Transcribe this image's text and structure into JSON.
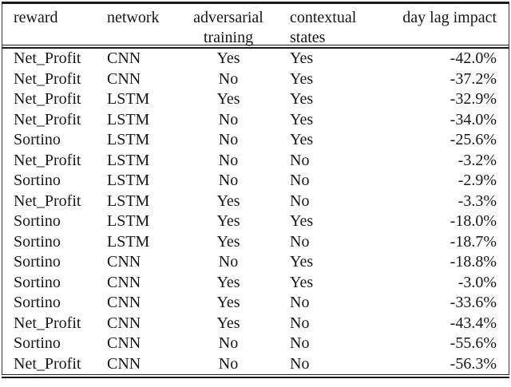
{
  "table": {
    "columns": [
      {
        "key": "reward",
        "label": "reward",
        "align": "left"
      },
      {
        "key": "network",
        "label": "network",
        "align": "left"
      },
      {
        "key": "adversarial_training",
        "label": "adversarial training",
        "align": "center"
      },
      {
        "key": "contextual_states",
        "label": "contextual states",
        "align": "left"
      },
      {
        "key": "day_lag_impact",
        "label": "day lag impact",
        "align": "right"
      }
    ],
    "rows": [
      [
        "Net_Profit",
        "CNN",
        "Yes",
        "Yes",
        "-42.0%"
      ],
      [
        "Net_Profit",
        "CNN",
        "No",
        "Yes",
        "-37.2%"
      ],
      [
        "Net_Profit",
        "LSTM",
        "Yes",
        "Yes",
        "-32.9%"
      ],
      [
        "Net_Profit",
        "LSTM",
        "No",
        "Yes",
        "-34.0%"
      ],
      [
        "Sortino",
        "LSTM",
        "No",
        "Yes",
        "-25.6%"
      ],
      [
        "Net_Profit",
        "LSTM",
        "No",
        "No",
        "-3.2%"
      ],
      [
        "Sortino",
        "LSTM",
        "No",
        "No",
        "-2.9%"
      ],
      [
        "Net_Profit",
        "LSTM",
        "Yes",
        "No",
        "-3.3%"
      ],
      [
        "Sortino",
        "LSTM",
        "Yes",
        "Yes",
        "-18.0%"
      ],
      [
        "Sortino",
        "LSTM",
        "Yes",
        "No",
        "-18.7%"
      ],
      [
        "Sortino",
        "CNN",
        "No",
        "Yes",
        "-18.8%"
      ],
      [
        "Sortino",
        "CNN",
        "Yes",
        "Yes",
        "-3.0%"
      ],
      [
        "Sortino",
        "CNN",
        "Yes",
        "No",
        "-33.6%"
      ],
      [
        "Net_Profit",
        "CNN",
        "Yes",
        "No",
        "-43.4%"
      ],
      [
        "Sortino",
        "CNN",
        "No",
        "No",
        "-55.6%"
      ],
      [
        "Net_Profit",
        "CNN",
        "No",
        "No",
        "-56.3%"
      ]
    ],
    "line_color": "#1b1b1b",
    "text_color": "#161616",
    "background_color": "#ffffff"
  }
}
